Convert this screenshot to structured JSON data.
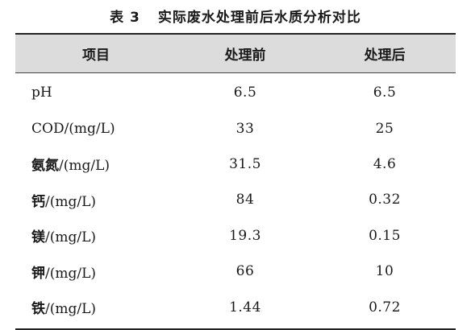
{
  "caption": {
    "number": "表 3",
    "title": "实际废水处理前后水质分析对比"
  },
  "table": {
    "headers": {
      "item": "项目",
      "before": "处理前",
      "after": "处理后"
    },
    "rows": [
      {
        "name_cn": "",
        "name_rest": "pH",
        "before": "6.5",
        "after": "6.5"
      },
      {
        "name_cn": "",
        "name_rest": "COD/(mg/L)",
        "before": "33",
        "after": "25"
      },
      {
        "name_cn": "氨氮",
        "name_rest": "/(mg/L)",
        "before": "31.5",
        "after": "4.6"
      },
      {
        "name_cn": "钙",
        "name_rest": "/(mg/L)",
        "before": "84",
        "after": "0.32"
      },
      {
        "name_cn": "镁",
        "name_rest": "/(mg/L)",
        "before": "19.3",
        "after": "0.15"
      },
      {
        "name_cn": "钾",
        "name_rest": "/(mg/L)",
        "before": "66",
        "after": "10"
      },
      {
        "name_cn": "铁",
        "name_rest": "/(mg/L)",
        "before": "1.44",
        "after": "0.72"
      }
    ]
  }
}
